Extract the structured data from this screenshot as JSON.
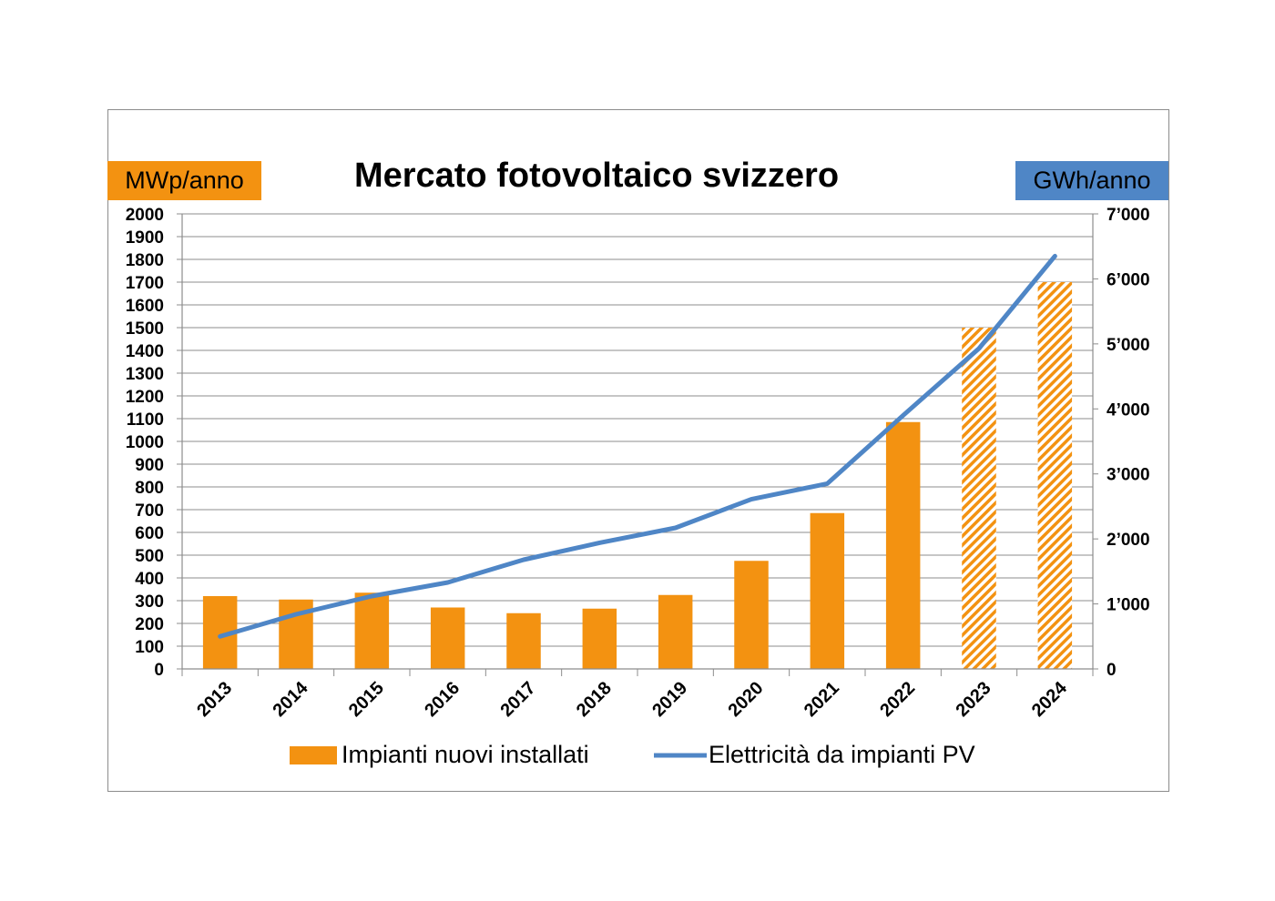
{
  "chart_data": {
    "type": "bar",
    "title": "Mercato fotovoltaico svizzero",
    "left_axis_unit": "MWp/anno",
    "right_axis_unit": "GWh/anno",
    "categories": [
      "2013",
      "2014",
      "2015",
      "2016",
      "2017",
      "2018",
      "2019",
      "2020",
      "2021",
      "2022",
      "2023",
      "2024"
    ],
    "left_ylim": [
      0,
      2000
    ],
    "left_ticks": [
      "0",
      "100",
      "200",
      "300",
      "400",
      "500",
      "600",
      "700",
      "800",
      "900",
      "1000",
      "1100",
      "1200",
      "1300",
      "1400",
      "1500",
      "1600",
      "1700",
      "1800",
      "1900",
      "2000"
    ],
    "right_ylim": [
      0,
      7000
    ],
    "right_ticks": [
      "0",
      "1’000",
      "2’000",
      "3’000",
      "4’000",
      "5’000",
      "6’000",
      "7’000"
    ],
    "grid": true,
    "legend_position": "bottom",
    "series": [
      {
        "name": "Impianti nuovi installati",
        "type": "bar",
        "axis": "left",
        "color": "#f39211",
        "values": [
          320,
          305,
          335,
          270,
          245,
          265,
          325,
          475,
          685,
          1085,
          1500,
          1700
        ],
        "hatched": [
          false,
          false,
          false,
          false,
          false,
          false,
          false,
          false,
          false,
          false,
          true,
          true
        ]
      },
      {
        "name": "Elettricità da impianti PV",
        "type": "line",
        "axis": "right",
        "color": "#4f86c6",
        "values": [
          500,
          840,
          1120,
          1330,
          1680,
          1940,
          2170,
          2610,
          2850,
          3900,
          4930,
          6350
        ]
      }
    ]
  }
}
